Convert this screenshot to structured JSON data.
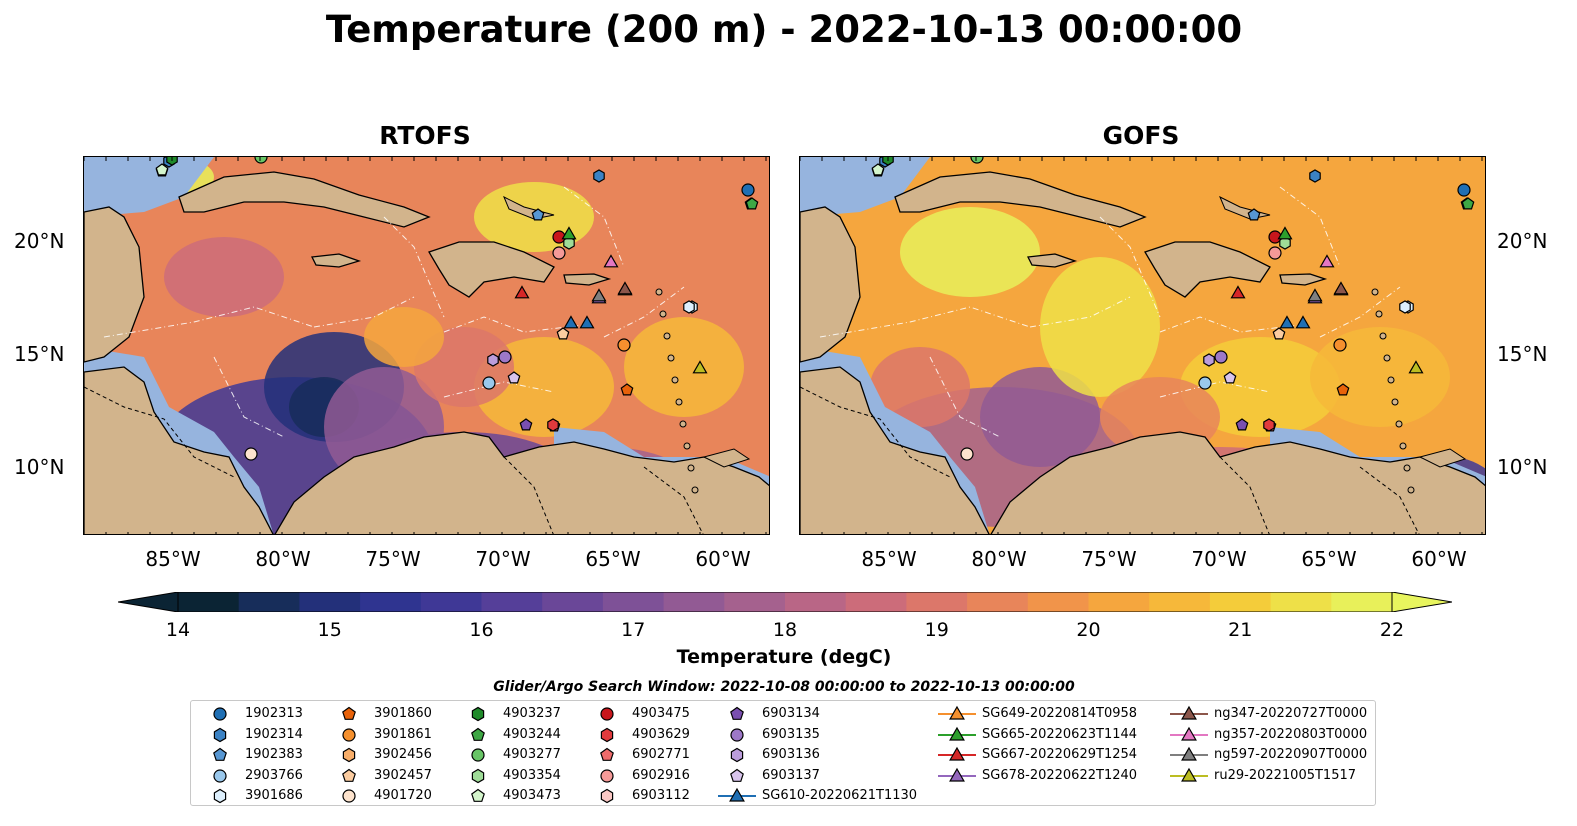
{
  "title": "Temperature (200 m) - 2022-10-13 00:00:00",
  "panels": [
    {
      "title": "RTOFS"
    },
    {
      "title": "GOFS"
    }
  ],
  "axes": {
    "y_ticks": [
      "20°N",
      "15°N",
      "10°N"
    ],
    "x_ticks": [
      "85°W",
      "80°W",
      "75°W",
      "70°W",
      "65°W",
      "60°W"
    ]
  },
  "colorbar": {
    "label": "Temperature (degC)",
    "ticks": [
      "14",
      "15",
      "16",
      "17",
      "18",
      "19",
      "20",
      "21",
      "22"
    ],
    "colors": [
      "#0b2434",
      "#172d5a",
      "#23307a",
      "#2f3490",
      "#3f3896",
      "#553f99",
      "#6a4798",
      "#7e5197",
      "#925a94",
      "#a5618e",
      "#b96686",
      "#cc6c7a",
      "#dc776a",
      "#e8855a",
      "#f1944a",
      "#f5a63e",
      "#f6b83a",
      "#f4cc3a",
      "#eee048",
      "#e8f05a"
    ],
    "extend_low_color": "#0b2434",
    "extend_high_color": "#e8f55e"
  },
  "search_window": "Glider/Argo Search Window: 2022-10-08 00:00:00 to 2022-10-13 00:00:00",
  "legend": [
    {
      "label": "1902313",
      "marker": "circle",
      "color": "#1f6fb4"
    },
    {
      "label": "1902314",
      "marker": "hexagon",
      "color": "#3b82c4"
    },
    {
      "label": "1902383",
      "marker": "pentagon",
      "color": "#5797d3"
    },
    {
      "label": "2903766",
      "marker": "circle",
      "color": "#9ac8ec"
    },
    {
      "label": "3901686",
      "marker": "hexagon",
      "color": "#ddeffc"
    },
    {
      "label": "3901860",
      "marker": "pentagon",
      "color": "#e8620a"
    },
    {
      "label": "3901861",
      "marker": "circle",
      "color": "#f5902e"
    },
    {
      "label": "3902456",
      "marker": "hexagon",
      "color": "#f8ae6a"
    },
    {
      "label": "3902457",
      "marker": "pentagon",
      "color": "#fbcca0"
    },
    {
      "label": "4901720",
      "marker": "circle",
      "color": "#fde3cd"
    },
    {
      "label": "4903237",
      "marker": "hexagon",
      "color": "#1f8a2a"
    },
    {
      "label": "4903244",
      "marker": "pentagon",
      "color": "#3ea845"
    },
    {
      "label": "4903277",
      "marker": "circle",
      "color": "#68c566"
    },
    {
      "label": "4903354",
      "marker": "hexagon",
      "color": "#9fdc98"
    },
    {
      "label": "4903473",
      "marker": "pentagon",
      "color": "#d4f5cc"
    },
    {
      "label": "4903475",
      "marker": "circle",
      "color": "#c8161c"
    },
    {
      "label": "4903629",
      "marker": "hexagon",
      "color": "#e03a3d"
    },
    {
      "label": "6902771",
      "marker": "pentagon",
      "color": "#ef6b6b"
    },
    {
      "label": "6902916",
      "marker": "circle",
      "color": "#f59a98"
    },
    {
      "label": "6903112",
      "marker": "hexagon",
      "color": "#fbc8c4"
    },
    {
      "label": "6903134",
      "marker": "pentagon",
      "color": "#7a4fb0"
    },
    {
      "label": "6903135",
      "marker": "circle",
      "color": "#9d78c8"
    },
    {
      "label": "6903136",
      "marker": "hexagon",
      "color": "#bb9ddb"
    },
    {
      "label": "6903137",
      "marker": "pentagon",
      "color": "#d8c4ec"
    },
    {
      "label": "SG610-20220621T1130",
      "marker": "triangle-line",
      "color": "#1f6fb4"
    },
    {
      "label": "SG649-20220814T0958",
      "marker": "triangle-line",
      "color": "#f5902e"
    },
    {
      "label": "SG665-20220623T1144",
      "marker": "triangle-line",
      "color": "#2ca02c"
    },
    {
      "label": "SG667-20220629T1254",
      "marker": "triangle-line",
      "color": "#d62728"
    },
    {
      "label": "SG678-20220622T1240",
      "marker": "triangle-line",
      "color": "#9467bd"
    },
    {
      "label": "ng347-20220727T0000",
      "marker": "triangle-line",
      "color": "#8c564b"
    },
    {
      "label": "ng357-20220803T0000",
      "marker": "triangle-line",
      "color": "#e377c2"
    },
    {
      "label": "ng597-20220907T0000",
      "marker": "triangle-line",
      "color": "#7f7f7f"
    },
    {
      "label": "ru29-20221005T1517",
      "marker": "triangle-line",
      "color": "#bcbd22"
    }
  ],
  "map_colors": {
    "land": "#d2b48c",
    "shelf": "#96b4de",
    "coast": "#000000"
  }
}
